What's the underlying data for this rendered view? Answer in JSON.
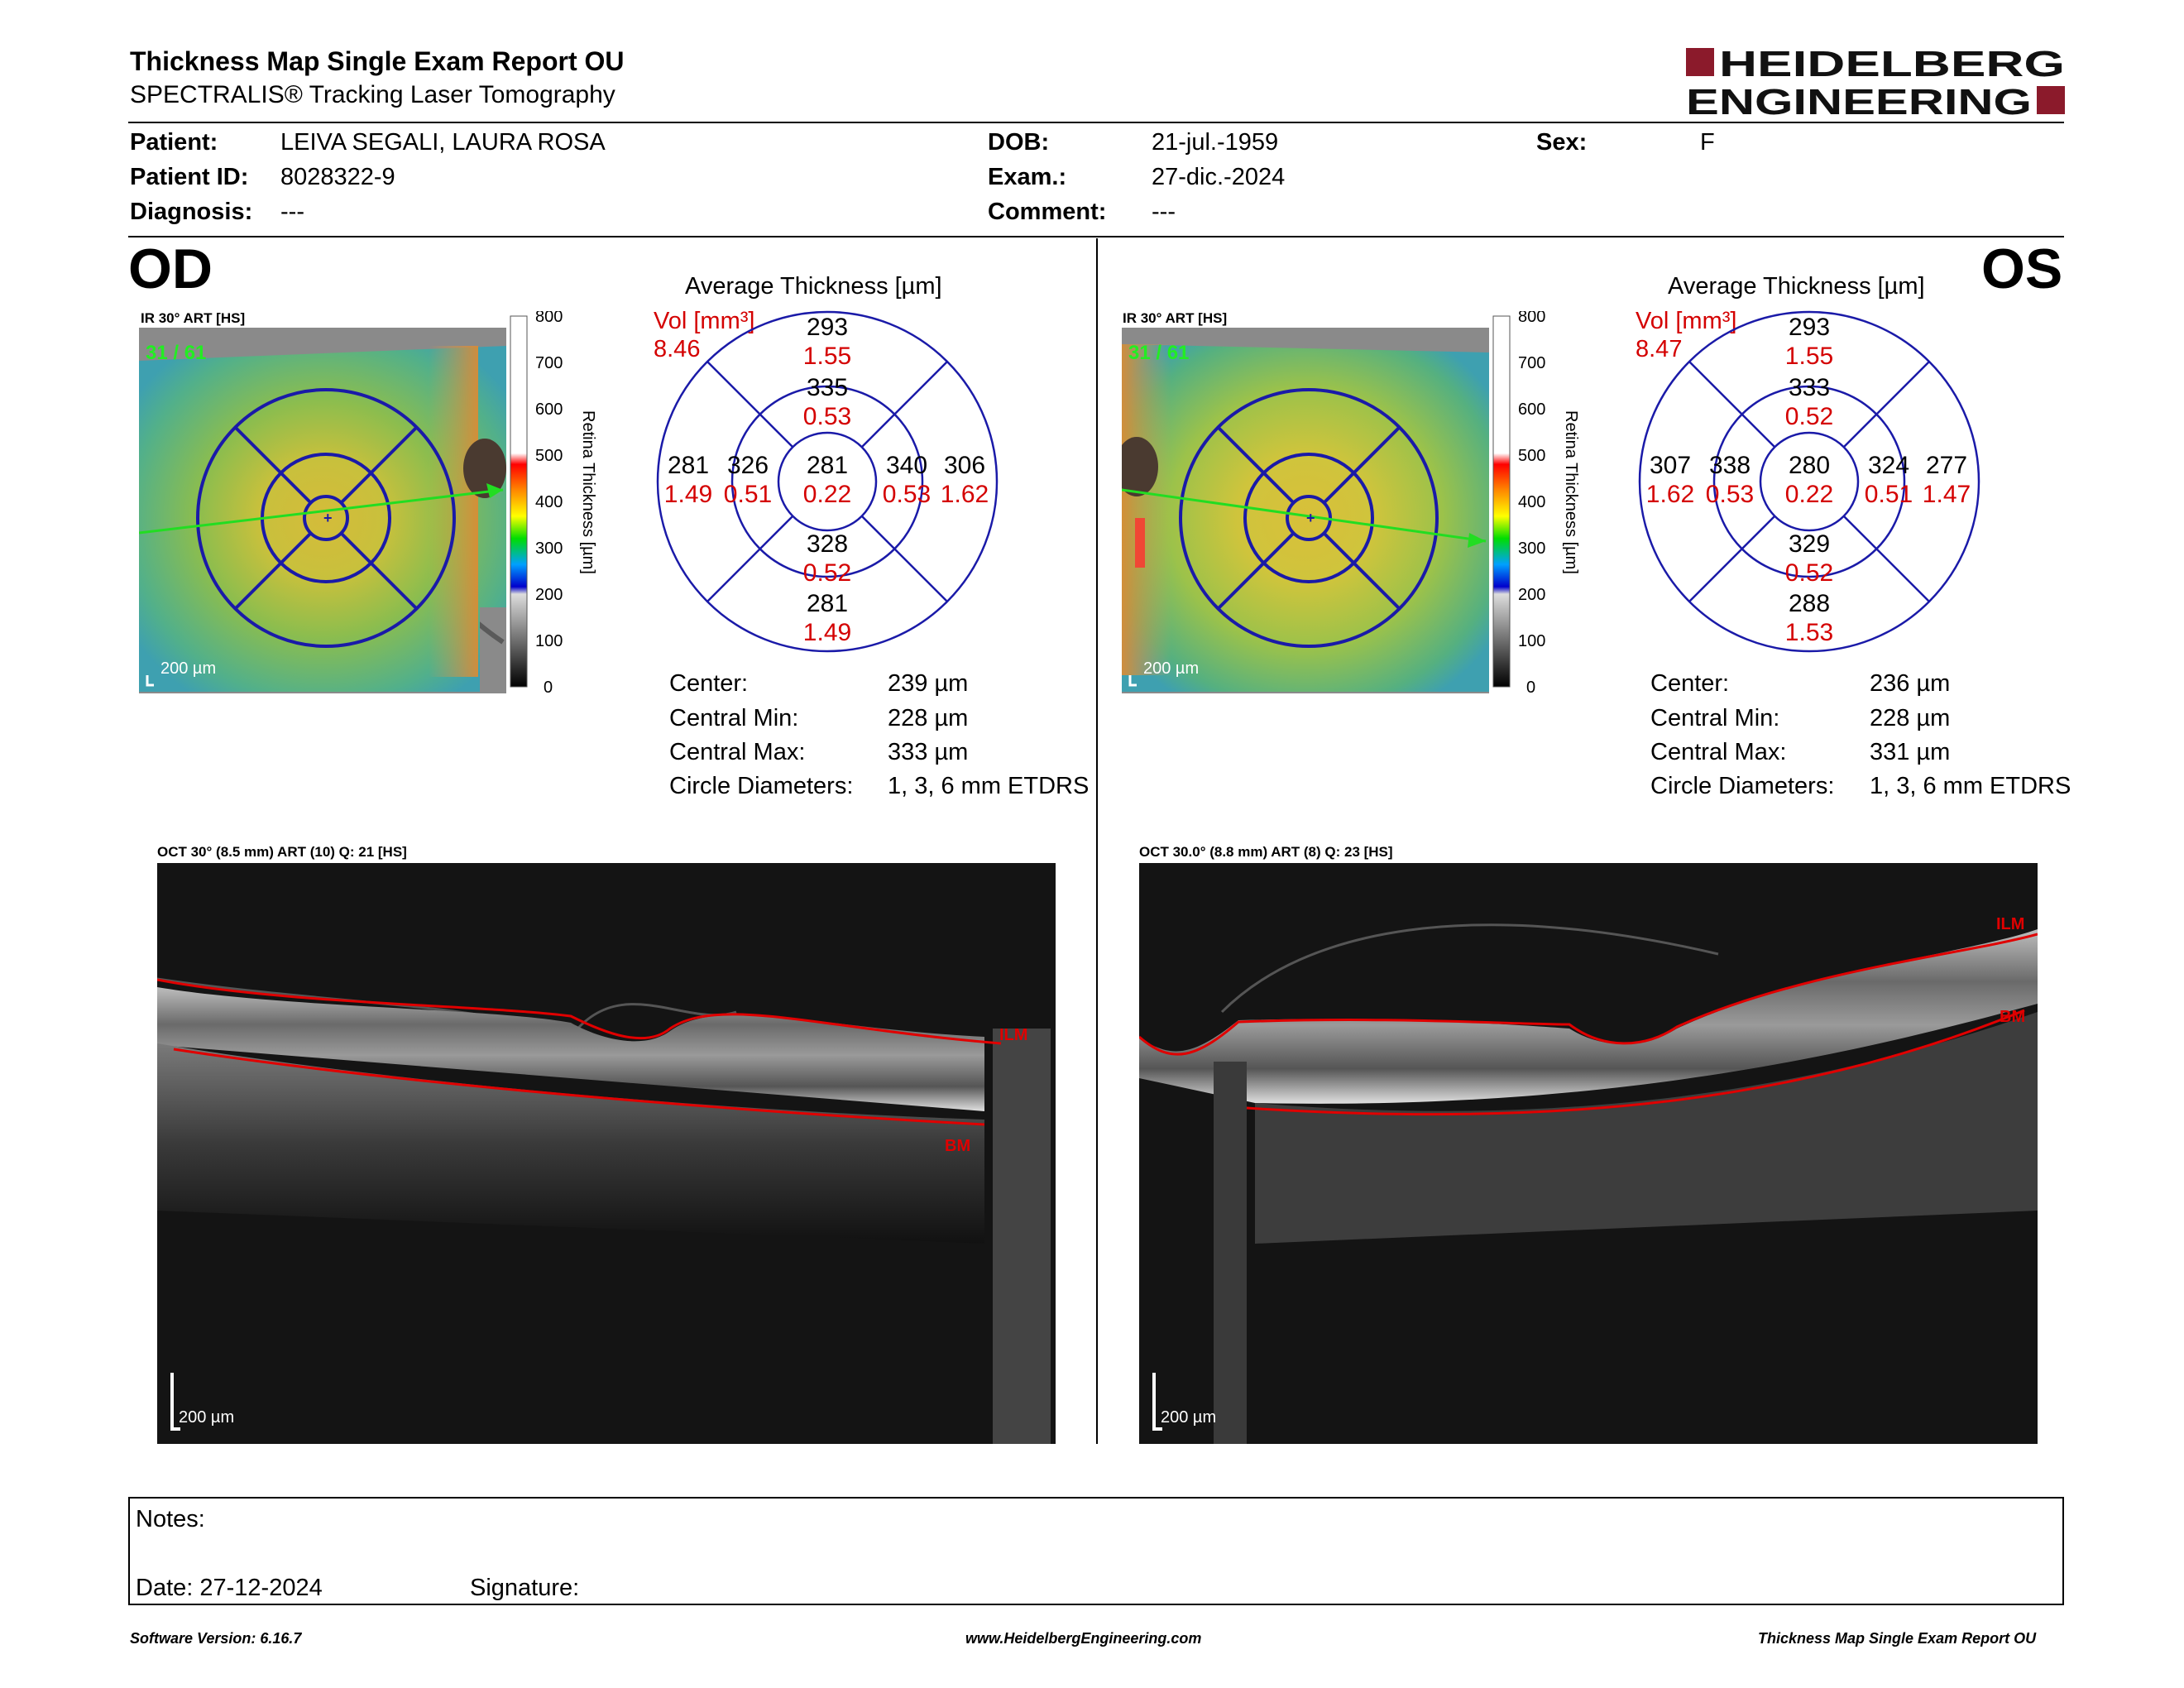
{
  "header": {
    "title": "Thickness Map Single Exam Report OU",
    "subtitle": "SPECTRALIS® Tracking Laser Tomography",
    "logo_line1": "HEIDELBERG",
    "logo_line2": "ENGINEERING"
  },
  "patient": {
    "patient_label": "Patient:",
    "patient_value": "LEIVA SEGALI, LAURA ROSA",
    "id_label": "Patient ID:",
    "id_value": "8028322-9",
    "diagnosis_label": "Diagnosis:",
    "diagnosis_value": "---",
    "dob_label": "DOB:",
    "dob_value": "21-jul.-1959",
    "exam_label": "Exam.:",
    "exam_value": "27-dic.-2024",
    "comment_label": "Comment:",
    "comment_value": "---",
    "sex_label": "Sex:",
    "sex_value": "F"
  },
  "colors": {
    "accent_red": "#8b1a2b",
    "value_red": "#d40000",
    "grid_blue": "#1a1aa8",
    "arrow_green": "#22dd22"
  },
  "scale": {
    "ticks": [
      "800",
      "700",
      "600",
      "500",
      "400",
      "300",
      "200",
      "100",
      "0"
    ],
    "label": "Retina Thickness [µm]"
  },
  "od": {
    "eye": "OD",
    "ir_label": "IR 30° ART [HS]",
    "frame": "31 / 61",
    "scalebar": "200 µm",
    "avg_title": "Average Thickness [µm]",
    "vol_label": "Vol [mm³]",
    "vol_value": "8.46",
    "sectors": {
      "outer_sup": {
        "t": "293",
        "v": "1.55"
      },
      "inner_sup": {
        "t": "335",
        "v": "0.53"
      },
      "outer_left": {
        "t": "281",
        "v": "1.49"
      },
      "inner_left": {
        "t": "326",
        "v": "0.51"
      },
      "center": {
        "t": "281",
        "v": "0.22"
      },
      "inner_right": {
        "t": "340",
        "v": "0.53"
      },
      "outer_right": {
        "t": "306",
        "v": "1.62"
      },
      "inner_inf": {
        "t": "328",
        "v": "0.52"
      },
      "outer_inf": {
        "t": "281",
        "v": "1.49"
      }
    },
    "stats": [
      {
        "label": "Center:",
        "value": "239 µm"
      },
      {
        "label": "Central Min:",
        "value": "228 µm"
      },
      {
        "label": "Central Max:",
        "value": "333 µm"
      },
      {
        "label": "Circle Diameters:",
        "value": "1, 3, 6 mm ETDRS"
      }
    ],
    "oct_label": "OCT 30° (8.5 mm) ART (10) Q: 21 [HS]",
    "ilm": "ILM",
    "bm": "BM",
    "oct_scalebar": "200 µm"
  },
  "os": {
    "eye": "OS",
    "ir_label": "IR 30° ART [HS]",
    "frame": "31 / 61",
    "scalebar": "200 µm",
    "avg_title": "Average Thickness [µm]",
    "vol_label": "Vol [mm³]",
    "vol_value": "8.47",
    "sectors": {
      "outer_sup": {
        "t": "293",
        "v": "1.55"
      },
      "inner_sup": {
        "t": "333",
        "v": "0.52"
      },
      "outer_left": {
        "t": "307",
        "v": "1.62"
      },
      "inner_left": {
        "t": "338",
        "v": "0.53"
      },
      "center": {
        "t": "280",
        "v": "0.22"
      },
      "inner_right": {
        "t": "324",
        "v": "0.51"
      },
      "outer_right": {
        "t": "277",
        "v": "1.47"
      },
      "inner_inf": {
        "t": "329",
        "v": "0.52"
      },
      "outer_inf": {
        "t": "288",
        "v": "1.53"
      }
    },
    "stats": [
      {
        "label": "Center:",
        "value": "236 µm"
      },
      {
        "label": "Central Min:",
        "value": "228 µm"
      },
      {
        "label": "Central Max:",
        "value": "331 µm"
      },
      {
        "label": "Circle Diameters:",
        "value": "1, 3, 6 mm ETDRS"
      }
    ],
    "oct_label": "OCT 30.0° (8.8 mm) ART (8) Q: 23 [HS]",
    "ilm": "ILM",
    "bm": "BM",
    "oct_scalebar": "200 µm"
  },
  "notes": {
    "notes_label": "Notes:",
    "date_label": "Date: 27-12-2024",
    "signature_label": "Signature:"
  },
  "footer": {
    "software": "Software Version: 6.16.7",
    "url": "www.HeidelbergEngineering.com",
    "report": "Thickness Map Single Exam Report OU"
  }
}
